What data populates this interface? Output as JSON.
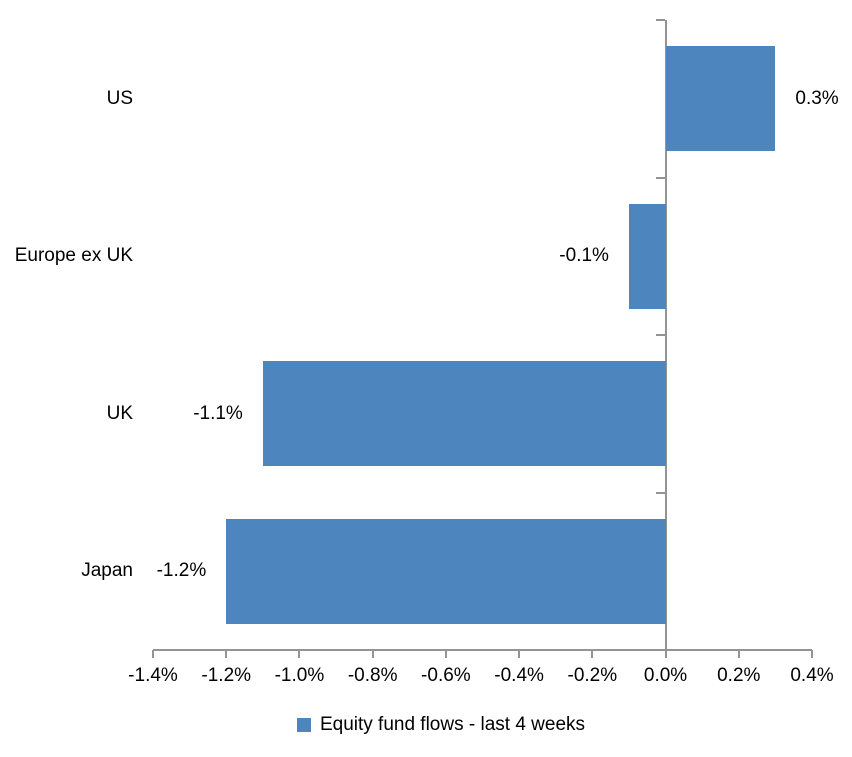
{
  "chart_data": {
    "type": "bar",
    "orientation": "horizontal",
    "title": "",
    "categories": [
      "US",
      "Europe ex UK",
      "UK",
      "Japan"
    ],
    "values": [
      0.3,
      -0.1,
      -1.1,
      -1.2
    ],
    "data_labels": [
      "0.3%",
      "-0.1%",
      "-1.1%",
      "-1.2%"
    ],
    "series_name": "Equity fund flows - last 4 weeks",
    "unit": "%",
    "xlim": [
      -1.4,
      0.4
    ],
    "x_ticks": [
      {
        "value": -1.4,
        "label": "-1.4%"
      },
      {
        "value": -1.2,
        "label": "-1.2%"
      },
      {
        "value": -1.0,
        "label": "-1.0%"
      },
      {
        "value": -0.8,
        "label": "-0.8%"
      },
      {
        "value": -0.6,
        "label": "-0.6%"
      },
      {
        "value": -0.4,
        "label": "-0.4%"
      },
      {
        "value": -0.2,
        "label": "-0.2%"
      },
      {
        "value": 0.0,
        "label": "0.0%"
      },
      {
        "value": 0.2,
        "label": "0.2%"
      },
      {
        "value": 0.4,
        "label": "0.4%"
      }
    ],
    "grid": false,
    "legend_position": "bottom",
    "colors": {
      "bar": "#4D86BE",
      "axis": "#949494",
      "text": "#000000",
      "background": "#FFFFFF"
    }
  },
  "legend": {
    "items": [
      {
        "label": "Equity fund flows - last 4 weeks",
        "swatch_color": "#4D86BE"
      }
    ]
  }
}
